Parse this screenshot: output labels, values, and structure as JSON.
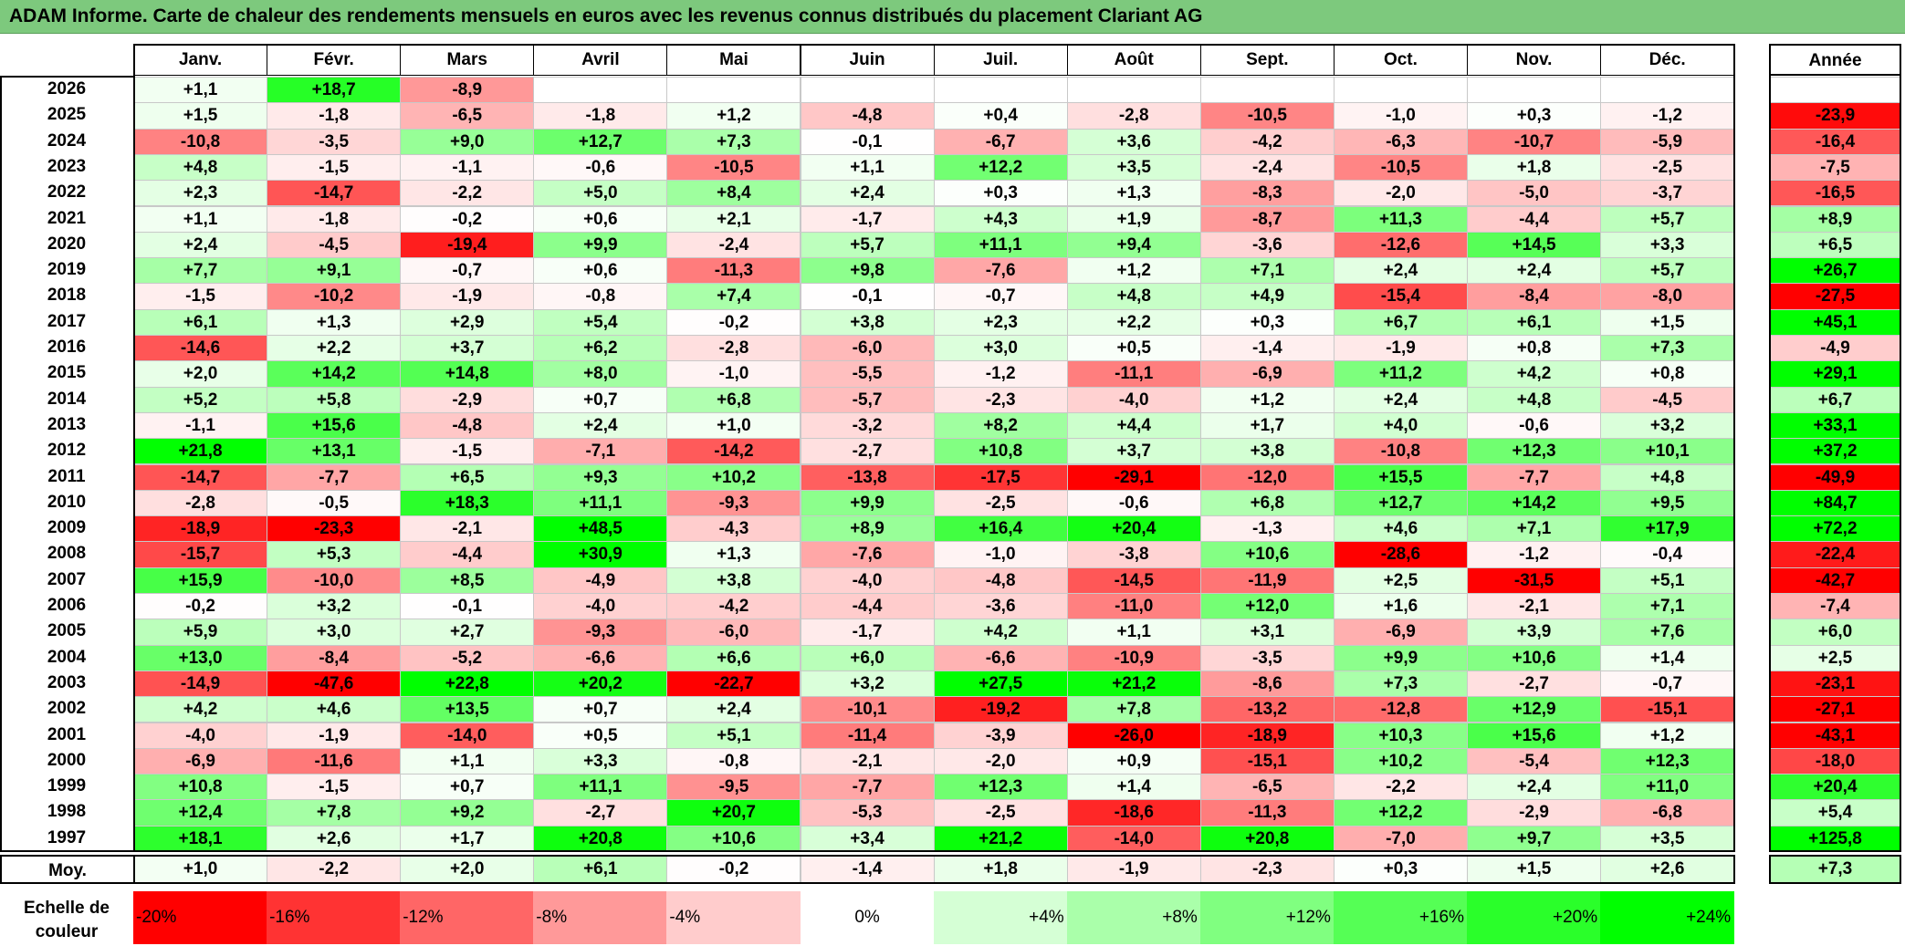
{
  "title": "ADAM Informe. Carte de chaleur des rendements mensuels en euros avec les revenus connus distribués du placement Clariant AG",
  "chart_data": {
    "type": "heatmap",
    "months": [
      "Janv.",
      "Févr.",
      "Mars",
      "Avril",
      "Mai",
      "Juin",
      "Juil.",
      "Août",
      "Sept.",
      "Oct.",
      "Nov.",
      "Déc."
    ],
    "annual_header": "Année",
    "rows": [
      {
        "year": "2026",
        "months": [
          "+1,1",
          "+18,7",
          "-8,9",
          "",
          "",
          "",
          "",
          "",
          "",
          "",
          "",
          ""
        ],
        "annual": ""
      },
      {
        "year": "2025",
        "months": [
          "+1,5",
          "-1,8",
          "-6,5",
          "-1,8",
          "+1,2",
          "-4,8",
          "+0,4",
          "-2,8",
          "-10,5",
          "-1,0",
          "+0,3",
          "-1,2"
        ],
        "annual": "-23,9"
      },
      {
        "year": "2024",
        "months": [
          "-10,8",
          "-3,5",
          "+9,0",
          "+12,7",
          "+7,3",
          "-0,1",
          "-6,7",
          "+3,6",
          "-4,2",
          "-6,3",
          "-10,7",
          "-5,9"
        ],
        "annual": "-16,4"
      },
      {
        "year": "2023",
        "months": [
          "+4,8",
          "-1,5",
          "-1,1",
          "-0,6",
          "-10,5",
          "+1,1",
          "+12,2",
          "+3,5",
          "-2,4",
          "-10,5",
          "+1,8",
          "-2,5"
        ],
        "annual": "-7,5"
      },
      {
        "year": "2022",
        "months": [
          "+2,3",
          "-14,7",
          "-2,2",
          "+5,0",
          "+8,4",
          "+2,4",
          "+0,3",
          "+1,3",
          "-8,3",
          "-2,0",
          "-5,0",
          "-3,7"
        ],
        "annual": "-16,5"
      },
      {
        "year": "2021",
        "months": [
          "+1,1",
          "-1,8",
          "-0,2",
          "+0,6",
          "+2,1",
          "-1,7",
          "+4,3",
          "+1,9",
          "-8,7",
          "+11,3",
          "-4,4",
          "+5,7"
        ],
        "annual": "+8,9"
      },
      {
        "year": "2020",
        "months": [
          "+2,4",
          "-4,5",
          "-19,4",
          "+9,9",
          "-2,4",
          "+5,7",
          "+11,1",
          "+9,4",
          "-3,6",
          "-12,6",
          "+14,5",
          "+3,3"
        ],
        "annual": "+6,5"
      },
      {
        "year": "2019",
        "months": [
          "+7,7",
          "+9,1",
          "-0,7",
          "+0,6",
          "-11,3",
          "+9,8",
          "-7,6",
          "+1,2",
          "+7,1",
          "+2,4",
          "+2,4",
          "+5,7"
        ],
        "annual": "+26,7"
      },
      {
        "year": "2018",
        "months": [
          "-1,5",
          "-10,2",
          "-1,9",
          "-0,8",
          "+7,4",
          "-0,1",
          "-0,7",
          "+4,8",
          "+4,9",
          "-15,4",
          "-8,4",
          "-8,0"
        ],
        "annual": "-27,5"
      },
      {
        "year": "2017",
        "months": [
          "+6,1",
          "+1,3",
          "+2,9",
          "+5,4",
          "-0,2",
          "+3,8",
          "+2,3",
          "+2,2",
          "+0,3",
          "+6,7",
          "+6,1",
          "+1,5"
        ],
        "annual": "+45,1"
      },
      {
        "year": "2016",
        "months": [
          "-14,6",
          "+2,2",
          "+3,7",
          "+6,2",
          "-2,8",
          "-6,0",
          "+3,0",
          "+0,5",
          "-1,4",
          "-1,9",
          "+0,8",
          "+7,3"
        ],
        "annual": "-4,9"
      },
      {
        "year": "2015",
        "months": [
          "+2,0",
          "+14,2",
          "+14,8",
          "+8,0",
          "-1,0",
          "-5,5",
          "-1,2",
          "-11,1",
          "-6,9",
          "+11,2",
          "+4,2",
          "+0,8"
        ],
        "annual": "+29,1"
      },
      {
        "year": "2014",
        "months": [
          "+5,2",
          "+5,8",
          "-2,9",
          "+0,7",
          "+6,8",
          "-5,7",
          "-2,3",
          "-4,0",
          "+1,2",
          "+2,4",
          "+4,8",
          "-4,5"
        ],
        "annual": "+6,7"
      },
      {
        "year": "2013",
        "months": [
          "-1,1",
          "+15,6",
          "-4,8",
          "+2,4",
          "+1,0",
          "-3,2",
          "+8,2",
          "+4,4",
          "+1,7",
          "+4,0",
          "-0,6",
          "+3,2"
        ],
        "annual": "+33,1"
      },
      {
        "year": "2012",
        "months": [
          "+21,8",
          "+13,1",
          "-1,5",
          "-7,1",
          "-14,2",
          "-2,7",
          "+10,8",
          "+3,7",
          "+3,8",
          "-10,8",
          "+12,3",
          "+10,1"
        ],
        "annual": "+37,2"
      },
      {
        "year": "2011",
        "months": [
          "-14,7",
          "-7,7",
          "+6,5",
          "+9,3",
          "+10,2",
          "-13,8",
          "-17,5",
          "-29,1",
          "-12,0",
          "+15,5",
          "-7,7",
          "+4,8"
        ],
        "annual": "-49,9"
      },
      {
        "year": "2010",
        "months": [
          "-2,8",
          "-0,5",
          "+18,3",
          "+11,1",
          "-9,3",
          "+9,9",
          "-2,5",
          "-0,6",
          "+6,8",
          "+12,7",
          "+14,2",
          "+9,5"
        ],
        "annual": "+84,7"
      },
      {
        "year": "2009",
        "months": [
          "-18,9",
          "-23,3",
          "-2,1",
          "+48,5",
          "-4,3",
          "+8,9",
          "+16,4",
          "+20,4",
          "-1,3",
          "+4,6",
          "+7,1",
          "+17,9"
        ],
        "annual": "+72,2"
      },
      {
        "year": "2008",
        "months": [
          "-15,7",
          "+5,3",
          "-4,4",
          "+30,9",
          "+1,3",
          "-7,6",
          "-1,0",
          "-3,8",
          "+10,6",
          "-28,6",
          "-1,2",
          "-0,4"
        ],
        "annual": "-22,4"
      },
      {
        "year": "2007",
        "months": [
          "+15,9",
          "-10,0",
          "+8,5",
          "-4,9",
          "+3,8",
          "-4,0",
          "-4,8",
          "-14,5",
          "-11,9",
          "+2,5",
          "-31,5",
          "+5,1"
        ],
        "annual": "-42,7"
      },
      {
        "year": "2006",
        "months": [
          "-0,2",
          "+3,2",
          "-0,1",
          "-4,0",
          "-4,2",
          "-4,4",
          "-3,6",
          "-11,0",
          "+12,0",
          "+1,6",
          "-2,1",
          "+7,1"
        ],
        "annual": "-7,4"
      },
      {
        "year": "2005",
        "months": [
          "+5,9",
          "+3,0",
          "+2,7",
          "-9,3",
          "-6,0",
          "-1,7",
          "+4,2",
          "+1,1",
          "+3,1",
          "-6,9",
          "+3,9",
          "+7,6"
        ],
        "annual": "+6,0"
      },
      {
        "year": "2004",
        "months": [
          "+13,0",
          "-8,4",
          "-5,2",
          "-6,6",
          "+6,6",
          "+6,0",
          "-6,6",
          "-10,9",
          "-3,5",
          "+9,9",
          "+10,6",
          "+1,4"
        ],
        "annual": "+2,5"
      },
      {
        "year": "2003",
        "months": [
          "-14,9",
          "-47,6",
          "+22,8",
          "+20,2",
          "-22,7",
          "+3,2",
          "+27,5",
          "+21,2",
          "-8,6",
          "+7,3",
          "-2,7",
          "-0,7"
        ],
        "annual": "-23,1"
      },
      {
        "year": "2002",
        "months": [
          "+4,2",
          "+4,6",
          "+13,5",
          "+0,7",
          "+2,4",
          "-10,1",
          "-19,2",
          "+7,8",
          "-13,2",
          "-12,8",
          "+12,9",
          "-15,1"
        ],
        "annual": "-27,1"
      },
      {
        "year": "2001",
        "months": [
          "-4,0",
          "-1,9",
          "-14,0",
          "+0,5",
          "+5,1",
          "-11,4",
          "-3,9",
          "-26,0",
          "-18,9",
          "+10,3",
          "+15,6",
          "+1,2"
        ],
        "annual": "-43,1"
      },
      {
        "year": "2000",
        "months": [
          "-6,9",
          "-11,6",
          "+1,1",
          "+3,3",
          "-0,8",
          "-2,1",
          "-2,0",
          "+0,9",
          "-15,1",
          "+10,2",
          "-5,4",
          "+12,3"
        ],
        "annual": "-18,0"
      },
      {
        "year": "1999",
        "months": [
          "+10,8",
          "-1,5",
          "+0,7",
          "+11,1",
          "-9,5",
          "-7,7",
          "+12,3",
          "+1,4",
          "-6,5",
          "-2,2",
          "+2,4",
          "+11,0"
        ],
        "annual": "+20,4"
      },
      {
        "year": "1998",
        "months": [
          "+12,4",
          "+7,8",
          "+9,2",
          "-2,7",
          "+20,7",
          "-5,3",
          "-2,5",
          "-18,6",
          "-11,3",
          "+12,2",
          "-2,9",
          "-6,8"
        ],
        "annual": "+5,4"
      },
      {
        "year": "1997",
        "months": [
          "+18,1",
          "+2,6",
          "+1,7",
          "+20,8",
          "+10,6",
          "+3,4",
          "+21,2",
          "-14,0",
          "+20,8",
          "-7,0",
          "+9,7",
          "+3,5"
        ],
        "annual": "+125,8"
      }
    ],
    "average": {
      "label": "Moy.",
      "months": [
        "+1,0",
        "-2,2",
        "+2,0",
        "+6,1",
        "-0,2",
        "-1,4",
        "+1,8",
        "-1,9",
        "-2,3",
        "+0,3",
        "+1,5",
        "+2,6"
      ],
      "annual": "+7,3"
    },
    "scale": {
      "label": "Echelle de couleur",
      "steps": [
        "-20%",
        "-16%",
        "-12%",
        "-8%",
        "-4%",
        "0%",
        "+4%",
        "+8%",
        "+12%",
        "+16%",
        "+20%",
        "+24%"
      ],
      "values": [
        -20,
        -16,
        -12,
        -8,
        -4,
        0,
        4,
        8,
        12,
        16,
        20,
        24
      ]
    },
    "colors": {
      "negative": "#ff0000",
      "neutral": "#ffffff",
      "positive": "#00ff00",
      "title_bg": "#7dc97d"
    }
  }
}
